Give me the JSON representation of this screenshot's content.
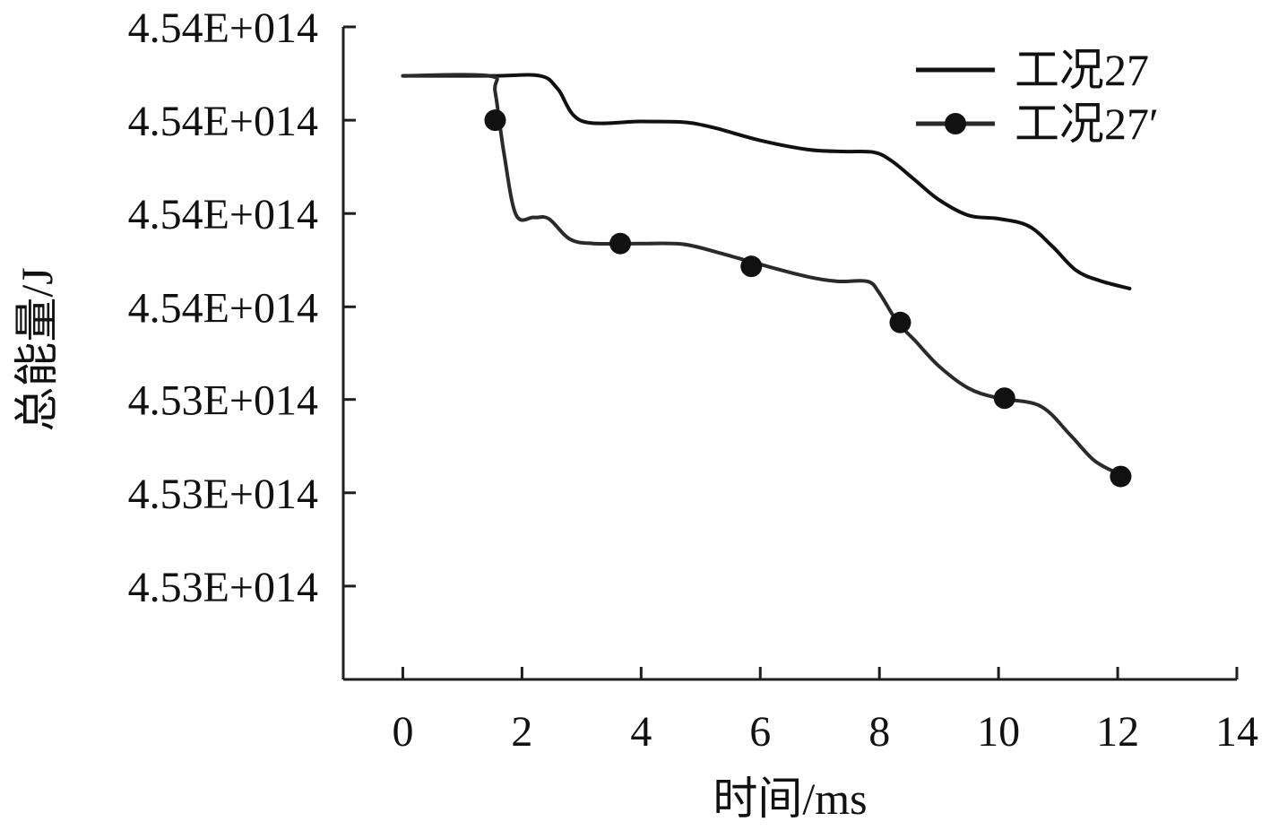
{
  "chart_data": {
    "type": "line",
    "xlabel": "时间/ms",
    "ylabel": "总能量/J",
    "xlim": [
      -1,
      14
    ],
    "ylim": [
      4.53,
      4.54
    ],
    "x_ticks": [
      0,
      2,
      4,
      6,
      8,
      10,
      12,
      14
    ],
    "y_ticks": [
      {
        "value": 4.54,
        "label": "4.54E+014"
      },
      {
        "value": 4.53857,
        "label": "4.54E+014"
      },
      {
        "value": 4.53714,
        "label": "4.54E+014"
      },
      {
        "value": 4.53571,
        "label": "4.54E+014"
      },
      {
        "value": 4.53429,
        "label": "4.53E+014"
      },
      {
        "value": 4.53286,
        "label": "4.53E+014"
      },
      {
        "value": 4.53143,
        "label": "4.53E+014"
      }
    ],
    "legend_position": "top-right",
    "series": [
      {
        "name": "工况27",
        "color": "#111111",
        "marker": "none",
        "x": [
          0,
          1.5,
          2.3,
          2.6,
          3.0,
          4.0,
          4.7,
          5.2,
          6.0,
          6.8,
          7.4,
          7.9,
          8.2,
          8.6,
          9.0,
          9.5,
          10.0,
          10.5,
          10.9,
          11.3,
          11.7,
          12.2
        ],
        "y": [
          4.53925,
          4.53925,
          4.53925,
          4.53905,
          4.53856,
          4.53855,
          4.53854,
          4.53846,
          4.53826,
          4.53812,
          4.53809,
          4.53808,
          4.53795,
          4.53765,
          4.53735,
          4.53711,
          4.53706,
          4.53695,
          4.53664,
          4.53627,
          4.53611,
          4.53599
        ]
      },
      {
        "name": "工况27′",
        "color": "#2a2a2a",
        "marker": "circle",
        "x": [
          0,
          1.45,
          1.55,
          1.7,
          1.9,
          2.2,
          2.45,
          2.8,
          3.2,
          4.0,
          4.7,
          5.3,
          6.0,
          6.8,
          7.3,
          7.8,
          8.0,
          8.3,
          8.6,
          9.0,
          9.5,
          10.0,
          10.7,
          11.2,
          11.6,
          12.0,
          12.2
        ],
        "y": [
          4.53925,
          4.53925,
          4.539,
          4.53805,
          4.53712,
          4.53708,
          4.53706,
          4.53675,
          4.53668,
          4.53668,
          4.53667,
          4.53654,
          4.53636,
          4.53617,
          4.5361,
          4.5361,
          4.53592,
          4.53548,
          4.53519,
          4.5348,
          4.53446,
          4.53431,
          4.53419,
          4.53375,
          4.53336,
          4.53316,
          4.53311
        ],
        "marker_points": [
          {
            "x": 1.55,
            "y": 4.53857
          },
          {
            "x": 3.65,
            "y": 4.53668
          },
          {
            "x": 5.85,
            "y": 4.53633
          },
          {
            "x": 8.35,
            "y": 4.53547
          },
          {
            "x": 10.1,
            "y": 4.53431
          },
          {
            "x": 12.05,
            "y": 4.53311
          }
        ]
      }
    ]
  }
}
